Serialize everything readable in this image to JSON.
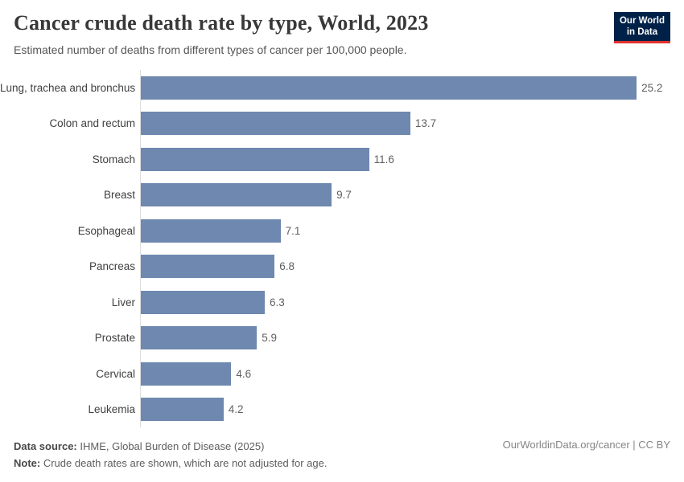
{
  "header": {
    "title": "Cancer crude death rate by type, World, 2023",
    "subtitle": "Estimated number of deaths from different types of cancer per 100,000 people.",
    "logo": {
      "line1": "Our World",
      "line2": "in Data",
      "bg_color": "#002147",
      "accent_color": "#e0322c"
    }
  },
  "chart_data": {
    "type": "bar",
    "orientation": "horizontal",
    "title": "Cancer crude death rate by type, World, 2023",
    "xlabel": "",
    "ylabel": "",
    "xlim": [
      0,
      25.2
    ],
    "grid": false,
    "legend": false,
    "bar_color": "#6e88af",
    "axis_line_color": "#dedede",
    "categories": [
      "Lung, trachea and bronchus",
      "Colon and rectum",
      "Stomach",
      "Breast",
      "Esophageal",
      "Pancreas",
      "Liver",
      "Prostate",
      "Cervical",
      "Leukemia"
    ],
    "values": [
      25.2,
      13.7,
      11.6,
      9.7,
      7.1,
      6.8,
      6.3,
      5.9,
      4.6,
      4.2
    ]
  },
  "footer": {
    "datasource_label": "Data source:",
    "datasource_text": " IHME, Global Burden of Disease (2025)",
    "note_label": "Note:",
    "note_text": " Crude death rates are shown, which are not adjusted for age.",
    "right_text": "OurWorldinData.org/cancer | CC BY"
  }
}
